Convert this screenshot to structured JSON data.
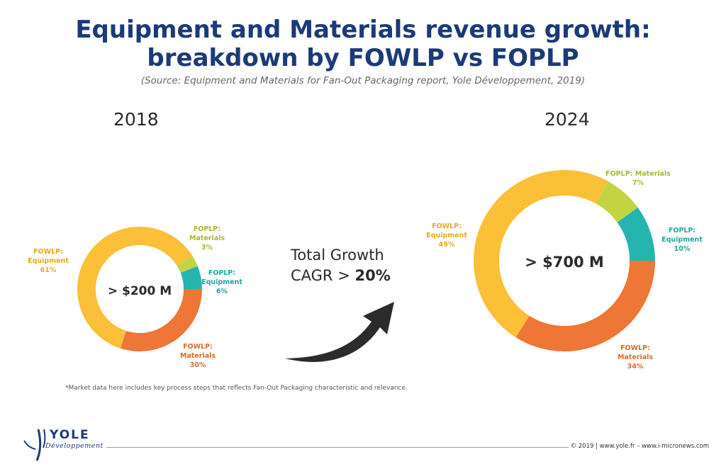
{
  "header": {
    "title_line1": "Equipment and Materials revenue growth:",
    "title_line2": "breakdown by FOWLP vs FOPLP",
    "source": "(Source: Equipment and Materials for Fan-Out Packaging report, Yole Développement, 2019)"
  },
  "colors": {
    "fowlp_equipment": "#fbbf38",
    "fowlp_materials": "#ee7636",
    "foplp_equipment": "#26b5ae",
    "foplp_materials": "#c3d442",
    "title": "#1b3a78"
  },
  "chart_data": [
    {
      "type": "pie",
      "title": "2018",
      "center_label": "> $200 M",
      "slices": [
        {
          "label_line1": "FOWLP:",
          "label_line2": "Equipment",
          "percent_label": "61%",
          "value": 61,
          "color": "#fbbf38"
        },
        {
          "label_line1": "FOPLP:",
          "label_line2": "Materials",
          "percent_label": "3%",
          "value": 3,
          "color": "#c3d442"
        },
        {
          "label_line1": "FOPLP:",
          "label_line2": "Equipment",
          "percent_label": "6%",
          "value": 6,
          "color": "#26b5ae"
        },
        {
          "label_line1": "FOWLP:",
          "label_line2": "Materials",
          "percent_label": "30%",
          "value": 30,
          "color": "#ee7636"
        }
      ]
    },
    {
      "type": "pie",
      "title": "2024",
      "center_label": "> $700 M",
      "slices": [
        {
          "label_line1": "FOWLP:",
          "label_line2": "Equipment",
          "percent_label": "49%",
          "value": 49,
          "color": "#fbbf38"
        },
        {
          "label_line1": "FOPLP: Materials",
          "label_line2": "",
          "percent_label": "7%",
          "value": 7,
          "color": "#c3d442"
        },
        {
          "label_line1": "FOPLP:",
          "label_line2": "Equipment",
          "percent_label": "10%",
          "value": 10,
          "color": "#26b5ae"
        },
        {
          "label_line1": "FOWLP:",
          "label_line2": "Materials",
          "percent_label": "34%",
          "value": 34,
          "color": "#ee7636"
        }
      ]
    }
  ],
  "growth": {
    "line1": "Total Growth",
    "line2_prefix": "CAGR > ",
    "line2_value": "20%"
  },
  "footnote": "*Market data here includes key process steps that reflects Fan-Out Packaging characteristic and relevance.",
  "footer": {
    "logo_word": "YOLE",
    "logo_sub": "Développement",
    "text": "© 2019 | www.yole.fr – www.i-micronews.com"
  }
}
